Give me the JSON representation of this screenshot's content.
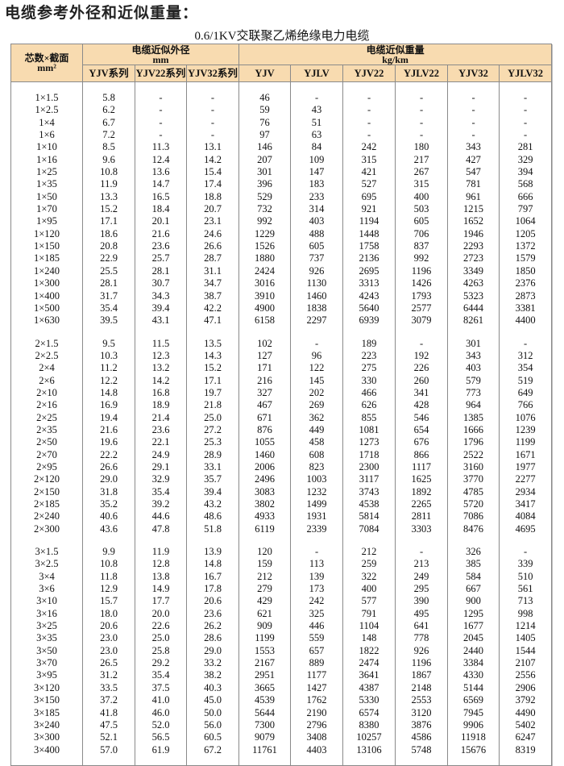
{
  "title": "电缆参考外径和近似重量：",
  "subtitle": "0.6/1KV交联聚乙烯绝缘电力电缆",
  "header": {
    "spec": "芯数×截面",
    "spec_unit": "mm²",
    "od_group": "电缆近似外径",
    "od_unit": "mm",
    "wt_group": "电缆近似重量",
    "wt_unit": "kg/km",
    "columns": [
      "YJV系列",
      "YJV22系列",
      "YJV32系列",
      "YJV",
      "YJLV",
      "YJV22",
      "YJLV22",
      "YJV32",
      "YJLV32"
    ]
  },
  "header_bg": "#f8dbb0",
  "groups": [
    [
      [
        "1×1.5",
        "5.8",
        "-",
        "-",
        "46",
        "-",
        "-",
        "-",
        "-",
        "-"
      ],
      [
        "1×2.5",
        "6.2",
        "-",
        "-",
        "59",
        "43",
        "-",
        "-",
        "-",
        "-"
      ],
      [
        "1×4",
        "6.7",
        "-",
        "-",
        "76",
        "51",
        "-",
        "-",
        "-",
        "-"
      ],
      [
        "1×6",
        "7.2",
        "-",
        "-",
        "97",
        "63",
        "-",
        "-",
        "-",
        "-"
      ],
      [
        "1×10",
        "8.5",
        "11.3",
        "13.1",
        "146",
        "84",
        "242",
        "180",
        "343",
        "281"
      ],
      [
        "1×16",
        "9.6",
        "12.4",
        "14.2",
        "207",
        "109",
        "315",
        "217",
        "427",
        "329"
      ],
      [
        "1×25",
        "10.8",
        "13.6",
        "15.4",
        "301",
        "147",
        "421",
        "267",
        "547",
        "394"
      ],
      [
        "1×35",
        "11.9",
        "14.7",
        "17.4",
        "396",
        "183",
        "527",
        "315",
        "781",
        "568"
      ],
      [
        "1×50",
        "13.3",
        "16.5",
        "18.8",
        "529",
        "233",
        "695",
        "400",
        "961",
        "666"
      ],
      [
        "1×70",
        "15.2",
        "18.4",
        "20.7",
        "732",
        "314",
        "921",
        "503",
        "1215",
        "797"
      ],
      [
        "1×95",
        "17.1",
        "20.1",
        "23.1",
        "992",
        "403",
        "1194",
        "605",
        "1652",
        "1064"
      ],
      [
        "1×120",
        "18.6",
        "21.6",
        "24.6",
        "1229",
        "488",
        "1448",
        "706",
        "1946",
        "1205"
      ],
      [
        "1×150",
        "20.8",
        "23.6",
        "26.6",
        "1526",
        "605",
        "1758",
        "837",
        "2293",
        "1372"
      ],
      [
        "1×185",
        "22.9",
        "25.7",
        "28.7",
        "1880",
        "737",
        "2136",
        "992",
        "2723",
        "1579"
      ],
      [
        "1×240",
        "25.5",
        "28.1",
        "31.1",
        "2424",
        "926",
        "2695",
        "1196",
        "3349",
        "1850"
      ],
      [
        "1×300",
        "28.1",
        "30.7",
        "34.7",
        "3016",
        "1130",
        "3313",
        "1426",
        "4263",
        "2376"
      ],
      [
        "1×400",
        "31.7",
        "34.3",
        "38.7",
        "3910",
        "1460",
        "4243",
        "1793",
        "5323",
        "2873"
      ],
      [
        "1×500",
        "35.4",
        "39.4",
        "42.2",
        "4900",
        "1838",
        "5640",
        "2577",
        "6444",
        "3381"
      ],
      [
        "1×630",
        "39.5",
        "43.1",
        "47.1",
        "6158",
        "2297",
        "6939",
        "3079",
        "8261",
        "4400"
      ]
    ],
    [
      [
        "2×1.5",
        "9.5",
        "11.5",
        "13.5",
        "102",
        "-",
        "189",
        "-",
        "301",
        "-"
      ],
      [
        "2×2.5",
        "10.3",
        "12.3",
        "14.3",
        "127",
        "96",
        "223",
        "192",
        "343",
        "312"
      ],
      [
        "2×4",
        "11.2",
        "13.2",
        "15.2",
        "171",
        "122",
        "275",
        "226",
        "403",
        "354"
      ],
      [
        "2×6",
        "12.2",
        "14.2",
        "17.1",
        "216",
        "145",
        "330",
        "260",
        "579",
        "519"
      ],
      [
        "2×10",
        "14.8",
        "16.8",
        "19.7",
        "327",
        "202",
        "466",
        "341",
        "773",
        "649"
      ],
      [
        "2×16",
        "16.9",
        "18.9",
        "21.8",
        "467",
        "269",
        "626",
        "428",
        "964",
        "766"
      ],
      [
        "2×25",
        "19.4",
        "21.4",
        "25.0",
        "671",
        "362",
        "855",
        "546",
        "1385",
        "1076"
      ],
      [
        "2×35",
        "21.6",
        "23.6",
        "27.2",
        "876",
        "449",
        "1081",
        "654",
        "1666",
        "1239"
      ],
      [
        "2×50",
        "19.6",
        "22.1",
        "25.3",
        "1055",
        "458",
        "1273",
        "676",
        "1796",
        "1199"
      ],
      [
        "2×70",
        "22.2",
        "24.9",
        "28.9",
        "1460",
        "608",
        "1718",
        "866",
        "2522",
        "1671"
      ],
      [
        "2×95",
        "26.6",
        "29.1",
        "33.1",
        "2006",
        "823",
        "2300",
        "1117",
        "3160",
        "1977"
      ],
      [
        "2×120",
        "29.0",
        "32.9",
        "35.7",
        "2496",
        "1003",
        "3117",
        "1625",
        "3770",
        "2277"
      ],
      [
        "2×150",
        "31.8",
        "35.4",
        "39.4",
        "3083",
        "1232",
        "3743",
        "1892",
        "4785",
        "2934"
      ],
      [
        "2×185",
        "35.2",
        "39.2",
        "43.2",
        "3802",
        "1499",
        "4538",
        "2265",
        "5720",
        "3417"
      ],
      [
        "2×240",
        "40.6",
        "44.6",
        "48.6",
        "4933",
        "1931",
        "5814",
        "2811",
        "7086",
        "4084"
      ],
      [
        "2×300",
        "43.6",
        "47.8",
        "51.8",
        "6119",
        "2339",
        "7084",
        "3303",
        "8476",
        "4695"
      ]
    ],
    [
      [
        "3×1.5",
        "9.9",
        "11.9",
        "13.9",
        "120",
        "-",
        "212",
        "-",
        "326",
        "-"
      ],
      [
        "3×2.5",
        "10.8",
        "12.8",
        "14.8",
        "159",
        "113",
        "259",
        "213",
        "385",
        "339"
      ],
      [
        "3×4",
        "11.8",
        "13.8",
        "16.7",
        "212",
        "139",
        "322",
        "249",
        "584",
        "510"
      ],
      [
        "3×6",
        "12.9",
        "14.9",
        "17.8",
        "279",
        "173",
        "400",
        "295",
        "667",
        "561"
      ],
      [
        "3×10",
        "15.7",
        "17.7",
        "20.6",
        "429",
        "242",
        "577",
        "390",
        "900",
        "713"
      ],
      [
        "3×16",
        "18.0",
        "20.0",
        "23.6",
        "621",
        "325",
        "791",
        "495",
        "1295",
        "998"
      ],
      [
        "3×25",
        "20.6",
        "22.6",
        "26.2",
        "909",
        "446",
        "1104",
        "641",
        "1677",
        "1214"
      ],
      [
        "3×35",
        "23.0",
        "25.0",
        "28.6",
        "1199",
        "559",
        "148",
        "778",
        "2045",
        "1405"
      ],
      [
        "3×50",
        "23.0",
        "25.8",
        "29.0",
        "1553",
        "657",
        "1822",
        "926",
        "2440",
        "1544"
      ],
      [
        "3×70",
        "26.5",
        "29.2",
        "33.2",
        "2167",
        "889",
        "2474",
        "1196",
        "3384",
        "2107"
      ],
      [
        "3×95",
        "31.2",
        "35.4",
        "38.2",
        "2951",
        "1177",
        "3641",
        "1867",
        "4330",
        "2556"
      ],
      [
        "3×120",
        "33.5",
        "37.5",
        "40.3",
        "3665",
        "1427",
        "4387",
        "2148",
        "5144",
        "2906"
      ],
      [
        "3×150",
        "37.2",
        "41.0",
        "45.0",
        "4539",
        "1762",
        "5330",
        "2553",
        "6569",
        "3792"
      ],
      [
        "3×185",
        "41.8",
        "46.0",
        "50.0",
        "5644",
        "2190",
        "6574",
        "3120",
        "7945",
        "4490"
      ],
      [
        "3×240",
        "47.5",
        "52.0",
        "56.0",
        "7300",
        "2796",
        "8380",
        "3876",
        "9906",
        "5402"
      ],
      [
        "3×300",
        "52.1",
        "56.5",
        "60.5",
        "9079",
        "3408",
        "10257",
        "4586",
        "11918",
        "6247"
      ],
      [
        "3×400",
        "57.0",
        "61.9",
        "67.2",
        "11761",
        "4403",
        "13106",
        "5748",
        "15676",
        "8319"
      ]
    ]
  ]
}
